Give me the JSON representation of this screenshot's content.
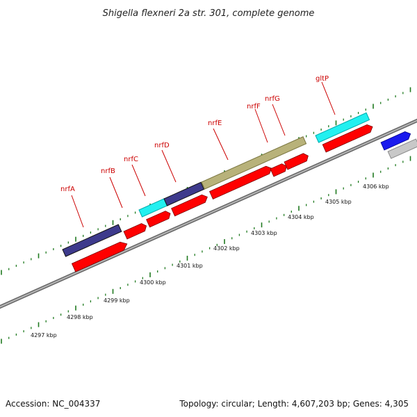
{
  "title": "Shigella flexneri 2a str. 301, complete genome",
  "footer": {
    "accession": "Accession: NC_004337",
    "summary": "Topology: circular; Length: 4,607,203 bp; Genes: 4,305"
  },
  "scale": {
    "unit": "kbp",
    "ticks": [
      "4297 kbp",
      "4298 kbp",
      "4299 kbp",
      "4300 kbp",
      "4301 kbp",
      "4302 kbp",
      "4303 kbp",
      "4304 kbp",
      "4305 kbp",
      "4306 kbp"
    ]
  },
  "genes": [
    "nrfA",
    "nrfB",
    "nrfC",
    "nrfD",
    "nrfE",
    "nrfF",
    "nrfG",
    "gltP"
  ],
  "colors": {
    "cds": "#ff0000",
    "navy": "#3d3a8c",
    "cyan": "#22f0f0",
    "olive": "#b8b27a",
    "blue": "#1a1aee",
    "gray": "#c8c8c8",
    "backbone": "#8a8a8a",
    "tick": "#1f7a1f",
    "label": "#cc0000"
  }
}
